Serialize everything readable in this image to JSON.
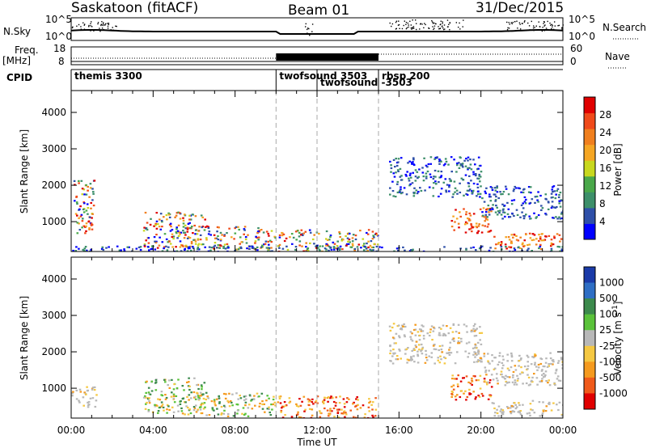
{
  "header": {
    "station": "Saskatoon (fitACF)",
    "beam": "Beam 01",
    "date": "31/Dec/2015"
  },
  "top_panels": {
    "nsky_label": "N.Sky",
    "nsky_ticks": [
      "10^5",
      "10^0"
    ],
    "nsearch_ticks": [
      "10^5",
      "10^0"
    ],
    "nsearch_label": "N.Search",
    "freq_label": "Freq.",
    "freq_unit": "[MHz]",
    "freq_ticks": [
      "18",
      "8"
    ],
    "nave_ticks": [
      "60",
      "0"
    ],
    "nave_label": "Nave",
    "cpid_label": "CPID"
  },
  "cpid_segments": [
    {
      "name": "themis 3300",
      "start": 0.0,
      "end": 10.0
    },
    {
      "name": "twofsound 3503",
      "start": 10.0,
      "end": 12.0
    },
    {
      "name": "twofsound -3503",
      "start": 12.0,
      "end": 15.0
    },
    {
      "name": "rbsp 200",
      "start": 15.0,
      "end": 24.0
    }
  ],
  "colors": {
    "power_scale": [
      "#0000ff",
      "#2e4fa8",
      "#3d8f6a",
      "#4aa84a",
      "#c8d81e",
      "#f5a623",
      "#f07f1e",
      "#f04a1a",
      "#e00000"
    ],
    "velocity_scale": [
      "#1a3aa8",
      "#2e6ec4",
      "#3c8a4c",
      "#5ac23a",
      "#b8b8b8",
      "#f5c842",
      "#f59a1e",
      "#f05a1a",
      "#e00000"
    ]
  },
  "chart_data": [
    {
      "type": "heatmap",
      "title": "Power",
      "xlabel": "",
      "ylabel": "Slant Range [km]",
      "xlim": [
        0,
        24
      ],
      "ylim": [
        180,
        4600
      ],
      "y_ticks": [
        "1000",
        "2000",
        "3000",
        "4000"
      ],
      "colorbar": {
        "label": "Power [dB]",
        "ticks": [
          "4",
          "8",
          "12",
          "16",
          "20",
          "24",
          "28"
        ],
        "range": [
          0,
          32
        ]
      },
      "scatter_regions": [
        {
          "x": [
            0.1,
            1.1
          ],
          "y": [
            700,
            2200
          ],
          "level": "mixed"
        },
        {
          "x": [
            0.4,
            1.0
          ],
          "y": [
            750,
            1050
          ],
          "level": "high"
        },
        {
          "x": [
            3.5,
            6.5
          ],
          "y": [
            300,
            1300
          ],
          "level": "mixed"
        },
        {
          "x": [
            5.5,
            9.5
          ],
          "y": [
            250,
            900
          ],
          "level": "mixed"
        },
        {
          "x": [
            9.5,
            15.0
          ],
          "y": [
            200,
            800
          ],
          "level": "mixed"
        },
        {
          "x": [
            15.5,
            20.0
          ],
          "y": [
            1700,
            2800
          ],
          "level": "low"
        },
        {
          "x": [
            18.5,
            20.5
          ],
          "y": [
            700,
            1400
          ],
          "level": "high"
        },
        {
          "x": [
            20.0,
            24.0
          ],
          "y": [
            1100,
            2000
          ],
          "level": "low"
        },
        {
          "x": [
            20.5,
            24.0
          ],
          "y": [
            250,
            700
          ],
          "level": "high"
        },
        {
          "x": [
            0.0,
            24.0
          ],
          "y": [
            180,
            350
          ],
          "level": "low"
        }
      ]
    },
    {
      "type": "heatmap",
      "title": "Velocity",
      "xlabel": "Time UT",
      "ylabel": "Slant Range [km]",
      "xlim": [
        0,
        24
      ],
      "ylim": [
        180,
        4600
      ],
      "x_ticks": [
        "00:00",
        "04:00",
        "08:00",
        "12:00",
        "16:00",
        "20:00",
        "00:00"
      ],
      "y_ticks": [
        "1000",
        "2000",
        "3000",
        "4000"
      ],
      "colorbar": {
        "label": "Velocity [m s^-1]",
        "ticks": [
          "1000",
          "500",
          "100",
          "25",
          "-25",
          "-100",
          "-500",
          "-1000"
        ]
      },
      "scatter_regions": [
        {
          "x": [
            0.0,
            1.2
          ],
          "y": [
            500,
            1100
          ],
          "level": "ground"
        },
        {
          "x": [
            3.5,
            6.5
          ],
          "y": [
            300,
            1300
          ],
          "level": "mixed"
        },
        {
          "x": [
            6.0,
            10.0
          ],
          "y": [
            250,
            900
          ],
          "level": "mixed"
        },
        {
          "x": [
            10.0,
            15.0
          ],
          "y": [
            200,
            800
          ],
          "level": "toward"
        },
        {
          "x": [
            15.5,
            20.0
          ],
          "y": [
            1700,
            2800
          ],
          "level": "ground"
        },
        {
          "x": [
            18.5,
            20.5
          ],
          "y": [
            700,
            1400
          ],
          "level": "toward"
        },
        {
          "x": [
            20.0,
            24.0
          ],
          "y": [
            1100,
            2000
          ],
          "level": "ground"
        },
        {
          "x": [
            20.5,
            24.0
          ],
          "y": [
            250,
            700
          ],
          "level": "ground"
        }
      ]
    }
  ]
}
